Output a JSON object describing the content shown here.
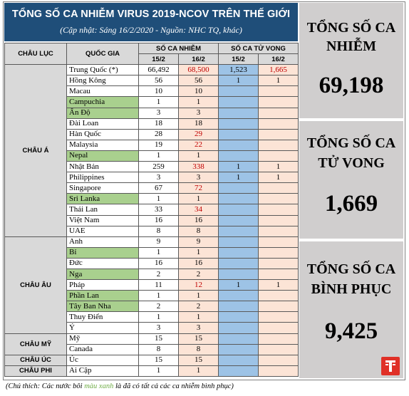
{
  "header": {
    "title": "TỔNG SỐ CA NHIỄM VIRUS 2019-NCOV TRÊN THẾ GIỚI",
    "subtitle": "(Cập nhật: Sáng 16/2/2020 - Nguồn: NHC TQ, khác)"
  },
  "table": {
    "col_continent": "CHÂU LỤC",
    "col_country": "QUỐC GIA",
    "col_cases": "SỐ CA NHIỄM",
    "col_deaths": "SỐ CA TỬ VONG",
    "date1": "15/2",
    "date2": "16/2",
    "date3": "15/2",
    "date4": "16/2",
    "groups": [
      {
        "continent": "CHÂU Á",
        "rows": [
          {
            "country": "Trung Quốc (*)",
            "c15": "66,492",
            "c16": "68,500",
            "d15": "1,523",
            "d16": "1,665",
            "green": false,
            "c16_new": true,
            "d16_new": true
          },
          {
            "country": "Hồng Kông",
            "c15": "56",
            "c16": "56",
            "d15": "1",
            "d16": "1",
            "green": false,
            "c16_new": false,
            "d16_new": false
          },
          {
            "country": "Macau",
            "c15": "10",
            "c16": "10",
            "d15": "",
            "d16": "",
            "green": false,
            "c16_new": false,
            "d16_new": false
          },
          {
            "country": "Campuchia",
            "c15": "1",
            "c16": "1",
            "d15": "",
            "d16": "",
            "green": true,
            "c16_new": false,
            "d16_new": false
          },
          {
            "country": "Ấn Độ",
            "c15": "3",
            "c16": "3",
            "d15": "",
            "d16": "",
            "green": true,
            "c16_new": false,
            "d16_new": false
          },
          {
            "country": "Đài Loan",
            "c15": "18",
            "c16": "18",
            "d15": "",
            "d16": "",
            "green": false,
            "c16_new": false,
            "d16_new": false
          },
          {
            "country": "Hàn Quốc",
            "c15": "28",
            "c16": "29",
            "d15": "",
            "d16": "",
            "green": false,
            "c16_new": true,
            "d16_new": false
          },
          {
            "country": "Malaysia",
            "c15": "19",
            "c16": "22",
            "d15": "",
            "d16": "",
            "green": false,
            "c16_new": true,
            "d16_new": false
          },
          {
            "country": "Nepal",
            "c15": "1",
            "c16": "1",
            "d15": "",
            "d16": "",
            "green": true,
            "c16_new": false,
            "d16_new": false
          },
          {
            "country": "Nhật Bản",
            "c15": "259",
            "c16": "338",
            "d15": "1",
            "d16": "1",
            "green": false,
            "c16_new": true,
            "d16_new": false
          },
          {
            "country": "Philippines",
            "c15": "3",
            "c16": "3",
            "d15": "1",
            "d16": "1",
            "green": false,
            "c16_new": false,
            "d16_new": false
          },
          {
            "country": "Singapore",
            "c15": "67",
            "c16": "72",
            "d15": "",
            "d16": "",
            "green": false,
            "c16_new": true,
            "d16_new": false
          },
          {
            "country": "Sri Lanka",
            "c15": "1",
            "c16": "1",
            "d15": "",
            "d16": "",
            "green": true,
            "c16_new": false,
            "d16_new": false
          },
          {
            "country": "Thái Lan",
            "c15": "33",
            "c16": "34",
            "d15": "",
            "d16": "",
            "green": false,
            "c16_new": true,
            "d16_new": false
          },
          {
            "country": "Việt Nam",
            "c15": "16",
            "c16": "16",
            "d15": "",
            "d16": "",
            "green": false,
            "c16_new": false,
            "d16_new": false
          },
          {
            "country": "UAE",
            "c15": "8",
            "c16": "8",
            "d15": "",
            "d16": "",
            "green": false,
            "c16_new": false,
            "d16_new": false
          }
        ]
      },
      {
        "continent": "CHÂU ÂU",
        "rows": [
          {
            "country": "Anh",
            "c15": "9",
            "c16": "9",
            "d15": "",
            "d16": "",
            "green": false,
            "c16_new": false,
            "d16_new": false
          },
          {
            "country": "Bỉ",
            "c15": "1",
            "c16": "1",
            "d15": "",
            "d16": "",
            "green": true,
            "c16_new": false,
            "d16_new": false
          },
          {
            "country": "Đức",
            "c15": "16",
            "c16": "16",
            "d15": "",
            "d16": "",
            "green": false,
            "c16_new": false,
            "d16_new": false
          },
          {
            "country": "Nga",
            "c15": "2",
            "c16": "2",
            "d15": "",
            "d16": "",
            "green": true,
            "c16_new": false,
            "d16_new": false
          },
          {
            "country": "Pháp",
            "c15": "11",
            "c16": "12",
            "d15": "1",
            "d16": "1",
            "green": false,
            "c16_new": true,
            "d16_new": false
          },
          {
            "country": "Phần Lan",
            "c15": "1",
            "c16": "1",
            "d15": "",
            "d16": "",
            "green": true,
            "c16_new": false,
            "d16_new": false
          },
          {
            "country": "Tây Ban Nha",
            "c15": "2",
            "c16": "2",
            "d15": "",
            "d16": "",
            "green": true,
            "c16_new": false,
            "d16_new": false
          },
          {
            "country": "Thuy Điển",
            "c15": "1",
            "c16": "1",
            "d15": "",
            "d16": "",
            "green": false,
            "c16_new": false,
            "d16_new": false
          },
          {
            "country": "Ý",
            "c15": "3",
            "c16": "3",
            "d15": "",
            "d16": "",
            "green": false,
            "c16_new": false,
            "d16_new": false
          }
        ]
      },
      {
        "continent": "CHÂU MỸ",
        "rows": [
          {
            "country": "Mỹ",
            "c15": "15",
            "c16": "15",
            "d15": "",
            "d16": "",
            "green": false,
            "c16_new": false,
            "d16_new": false
          },
          {
            "country": "Canada",
            "c15": "8",
            "c16": "8",
            "d15": "",
            "d16": "",
            "green": false,
            "c16_new": false,
            "d16_new": false
          }
        ]
      },
      {
        "continent": "CHÂU ÚC",
        "rows": [
          {
            "country": "Úc",
            "c15": "15",
            "c16": "15",
            "d15": "",
            "d16": "",
            "green": false,
            "c16_new": false,
            "d16_new": false
          }
        ]
      },
      {
        "continent": "CHÂU PHI",
        "rows": [
          {
            "country": "Ai Cập",
            "c15": "1",
            "c16": "1",
            "d15": "",
            "d16": "",
            "green": false,
            "c16_new": false,
            "d16_new": false
          }
        ]
      }
    ]
  },
  "summary": {
    "cases_label_1": "TỔNG SỐ CA",
    "cases_label_2": "NHIỄM",
    "cases_value": "69,198",
    "deaths_label_1": "TỔNG SỐ CA",
    "deaths_label_2": "TỬ VONG",
    "deaths_value": "1,669",
    "recovered_label_1": "TỔNG SỐ CA",
    "recovered_label_2": "BÌNH PHỤC",
    "recovered_value": "9,425"
  },
  "footnote": {
    "prefix": "(Chú thích: Các nước bôi ",
    "highlight": "màu xanh",
    "suffix": " là đã có tất cả các ca nhiễm bình phục)"
  },
  "colors": {
    "header_bg": "#1f4e79",
    "green_highlight": "#a9d08e",
    "new_value_red": "#c00000",
    "death_15_blue": "#9dc3e6",
    "col_16_peach": "#fce4d6",
    "summary_bg": "#d0cece",
    "logo_red": "#e03027"
  },
  "logo_icon": "newspaper-logo-icon"
}
